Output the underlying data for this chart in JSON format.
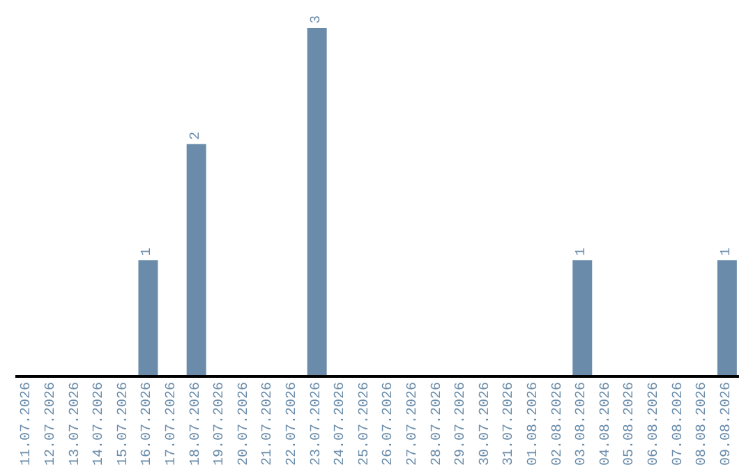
{
  "chart_data": {
    "type": "bar",
    "categories": [
      "11.07.2026",
      "12.07.2026",
      "13.07.2026",
      "14.07.2026",
      "15.07.2026",
      "16.07.2026",
      "17.07.2026",
      "18.07.2026",
      "19.07.2026",
      "20.07.2026",
      "21.07.2026",
      "22.07.2026",
      "23.07.2026",
      "24.07.2026",
      "25.07.2026",
      "26.07.2026",
      "27.07.2026",
      "28.07.2026",
      "29.07.2026",
      "30.07.2026",
      "31.07.2026",
      "01.08.2026",
      "02.08.2026",
      "03.08.2026",
      "04.08.2026",
      "05.08.2026",
      "06.08.2026",
      "07.08.2026",
      "08.08.2026",
      "09.08.2026"
    ],
    "values": [
      0,
      0,
      0,
      0,
      0,
      1,
      0,
      2,
      0,
      0,
      0,
      0,
      3,
      0,
      0,
      0,
      0,
      0,
      0,
      0,
      0,
      0,
      0,
      1,
      0,
      0,
      0,
      0,
      0,
      1
    ],
    "value_labels": [
      null,
      null,
      null,
      null,
      null,
      "1",
      null,
      "2",
      null,
      null,
      null,
      null,
      "3",
      null,
      null,
      null,
      null,
      null,
      null,
      null,
      null,
      null,
      null,
      "1",
      null,
      null,
      null,
      null,
      null,
      "1"
    ],
    "color": "#6a8caa",
    "tick_labels": "x"
  }
}
